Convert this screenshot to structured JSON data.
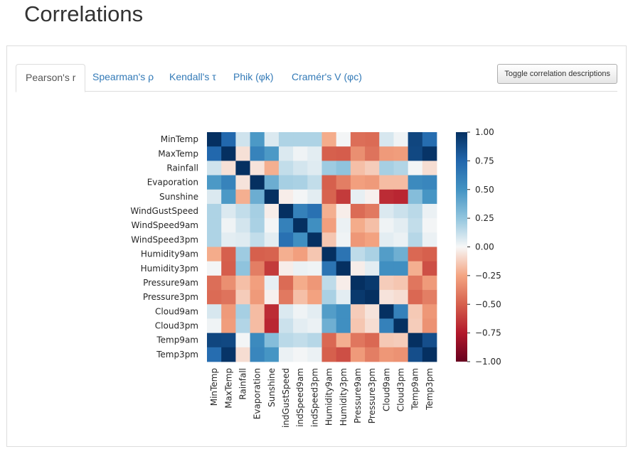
{
  "header": {
    "title": "Correlations"
  },
  "tabs": [
    {
      "label": "Pearson's r",
      "active": true
    },
    {
      "label": "Spearman's ρ",
      "active": false
    },
    {
      "label": "Kendall's τ",
      "active": false
    },
    {
      "label": "Phik (φk)",
      "active": false
    },
    {
      "label": "Cramér's V (φc)",
      "active": false
    }
  ],
  "toolbar": {
    "toggle_label": "Toggle correlation descriptions"
  },
  "colors": {
    "link": "#337ab7",
    "cmap_pos": "#053061",
    "cmap_neg": "#67001f",
    "cmap_mid": "#f7f7f7"
  },
  "chart_data": {
    "type": "heatmap",
    "title": "",
    "row_labels": [
      "MinTemp",
      "MaxTemp",
      "Rainfall",
      "Evaporation",
      "Sunshine",
      "WindGustSpeed",
      "WindSpeed9am",
      "WindSpeed3pm",
      "Humidity9am",
      "Humidity3pm",
      "Pressure9am",
      "Pressure3pm",
      "Cloud9am",
      "Cloud3pm",
      "Temp9am",
      "Temp3pm"
    ],
    "col_labels": [
      "MinTemp",
      "MaxTemp",
      "Rainfall",
      "Evaporation",
      "Sunshine",
      "indGustSpeed",
      "indSpeed9am",
      "indSpeed3pm",
      "Humidity9am",
      "Humidity3pm",
      "Pressure9am",
      "Pressure3pm",
      "Cloud9am",
      "Cloud3pm",
      "Temp9am",
      "Temp3pm"
    ],
    "matrix": [
      [
        1.0,
        0.74,
        0.1,
        0.47,
        0.07,
        0.18,
        0.18,
        0.18,
        -0.23,
        0.01,
        -0.45,
        -0.46,
        0.08,
        0.02,
        0.9,
        0.71
      ],
      [
        0.74,
        1.0,
        -0.07,
        0.59,
        0.47,
        0.07,
        0.02,
        0.05,
        -0.5,
        -0.51,
        -0.33,
        -0.43,
        -0.29,
        -0.28,
        0.89,
        0.98
      ],
      [
        0.1,
        -0.07,
        1.0,
        -0.06,
        -0.22,
        0.13,
        0.09,
        0.06,
        0.22,
        0.26,
        -0.17,
        -0.13,
        0.2,
        0.17,
        0.01,
        -0.08
      ],
      [
        0.47,
        0.59,
        -0.06,
        1.0,
        0.37,
        0.2,
        0.19,
        0.13,
        -0.5,
        -0.39,
        -0.27,
        -0.29,
        -0.18,
        -0.18,
        0.55,
        0.57
      ],
      [
        0.07,
        0.47,
        -0.22,
        0.37,
        1.0,
        -0.03,
        0.01,
        0.05,
        -0.49,
        -0.63,
        0.04,
        -0.02,
        -0.68,
        -0.7,
        0.29,
        0.49
      ],
      [
        0.18,
        0.07,
        0.13,
        0.2,
        -0.03,
        1.0,
        0.6,
        0.69,
        -0.22,
        -0.03,
        -0.46,
        -0.41,
        0.07,
        0.11,
        0.15,
        0.03
      ],
      [
        0.18,
        0.02,
        0.09,
        0.19,
        0.01,
        0.6,
        1.0,
        0.52,
        -0.27,
        0.03,
        -0.23,
        -0.17,
        0.02,
        0.05,
        0.13,
        0.01
      ],
      [
        0.18,
        0.05,
        0.06,
        0.13,
        0.05,
        0.69,
        0.52,
        1.0,
        -0.15,
        0.02,
        -0.3,
        -0.26,
        0.05,
        0.03,
        0.16,
        0.03
      ],
      [
        -0.23,
        -0.5,
        0.22,
        -0.5,
        -0.49,
        -0.22,
        -0.27,
        -0.15,
        1.0,
        0.67,
        0.14,
        0.19,
        0.45,
        0.36,
        -0.47,
        -0.5
      ],
      [
        0.01,
        -0.51,
        0.26,
        -0.39,
        -0.63,
        -0.03,
        0.03,
        0.02,
        0.67,
        1.0,
        -0.03,
        0.05,
        0.52,
        0.52,
        -0.22,
        -0.56
      ],
      [
        -0.45,
        -0.33,
        -0.17,
        -0.27,
        0.04,
        -0.46,
        -0.23,
        -0.3,
        0.14,
        -0.03,
        1.0,
        0.96,
        -0.13,
        -0.15,
        -0.42,
        -0.29
      ],
      [
        -0.46,
        -0.43,
        -0.13,
        -0.29,
        -0.02,
        -0.41,
        -0.17,
        -0.26,
        0.19,
        0.05,
        0.96,
        1.0,
        -0.06,
        -0.08,
        -0.47,
        -0.39
      ],
      [
        0.08,
        -0.29,
        0.2,
        -0.18,
        -0.68,
        0.07,
        0.02,
        0.05,
        0.45,
        0.52,
        -0.13,
        -0.06,
        1.0,
        0.6,
        -0.14,
        -0.3
      ],
      [
        0.02,
        -0.28,
        0.17,
        -0.18,
        -0.7,
        0.11,
        0.05,
        0.03,
        0.36,
        0.52,
        -0.15,
        -0.08,
        0.6,
        1.0,
        -0.13,
        -0.32
      ],
      [
        0.9,
        0.89,
        0.01,
        0.55,
        0.29,
        0.15,
        0.13,
        0.16,
        -0.47,
        -0.22,
        -0.42,
        -0.47,
        -0.14,
        -0.13,
        1.0,
        0.86
      ],
      [
        0.71,
        0.98,
        -0.08,
        0.57,
        0.49,
        0.03,
        0.01,
        0.03,
        -0.5,
        -0.56,
        -0.29,
        -0.39,
        -0.3,
        -0.32,
        0.86,
        1.0
      ]
    ],
    "colorbar": {
      "min": -1.0,
      "max": 1.0,
      "ticks": [
        1.0,
        0.75,
        0.5,
        0.25,
        0.0,
        -0.25,
        -0.5,
        -0.75,
        -1.0
      ],
      "tick_labels": [
        "1.00",
        "0.75",
        "0.50",
        "0.25",
        "0.00",
        "−0.25",
        "−0.50",
        "−0.75",
        "−1.00"
      ]
    }
  }
}
